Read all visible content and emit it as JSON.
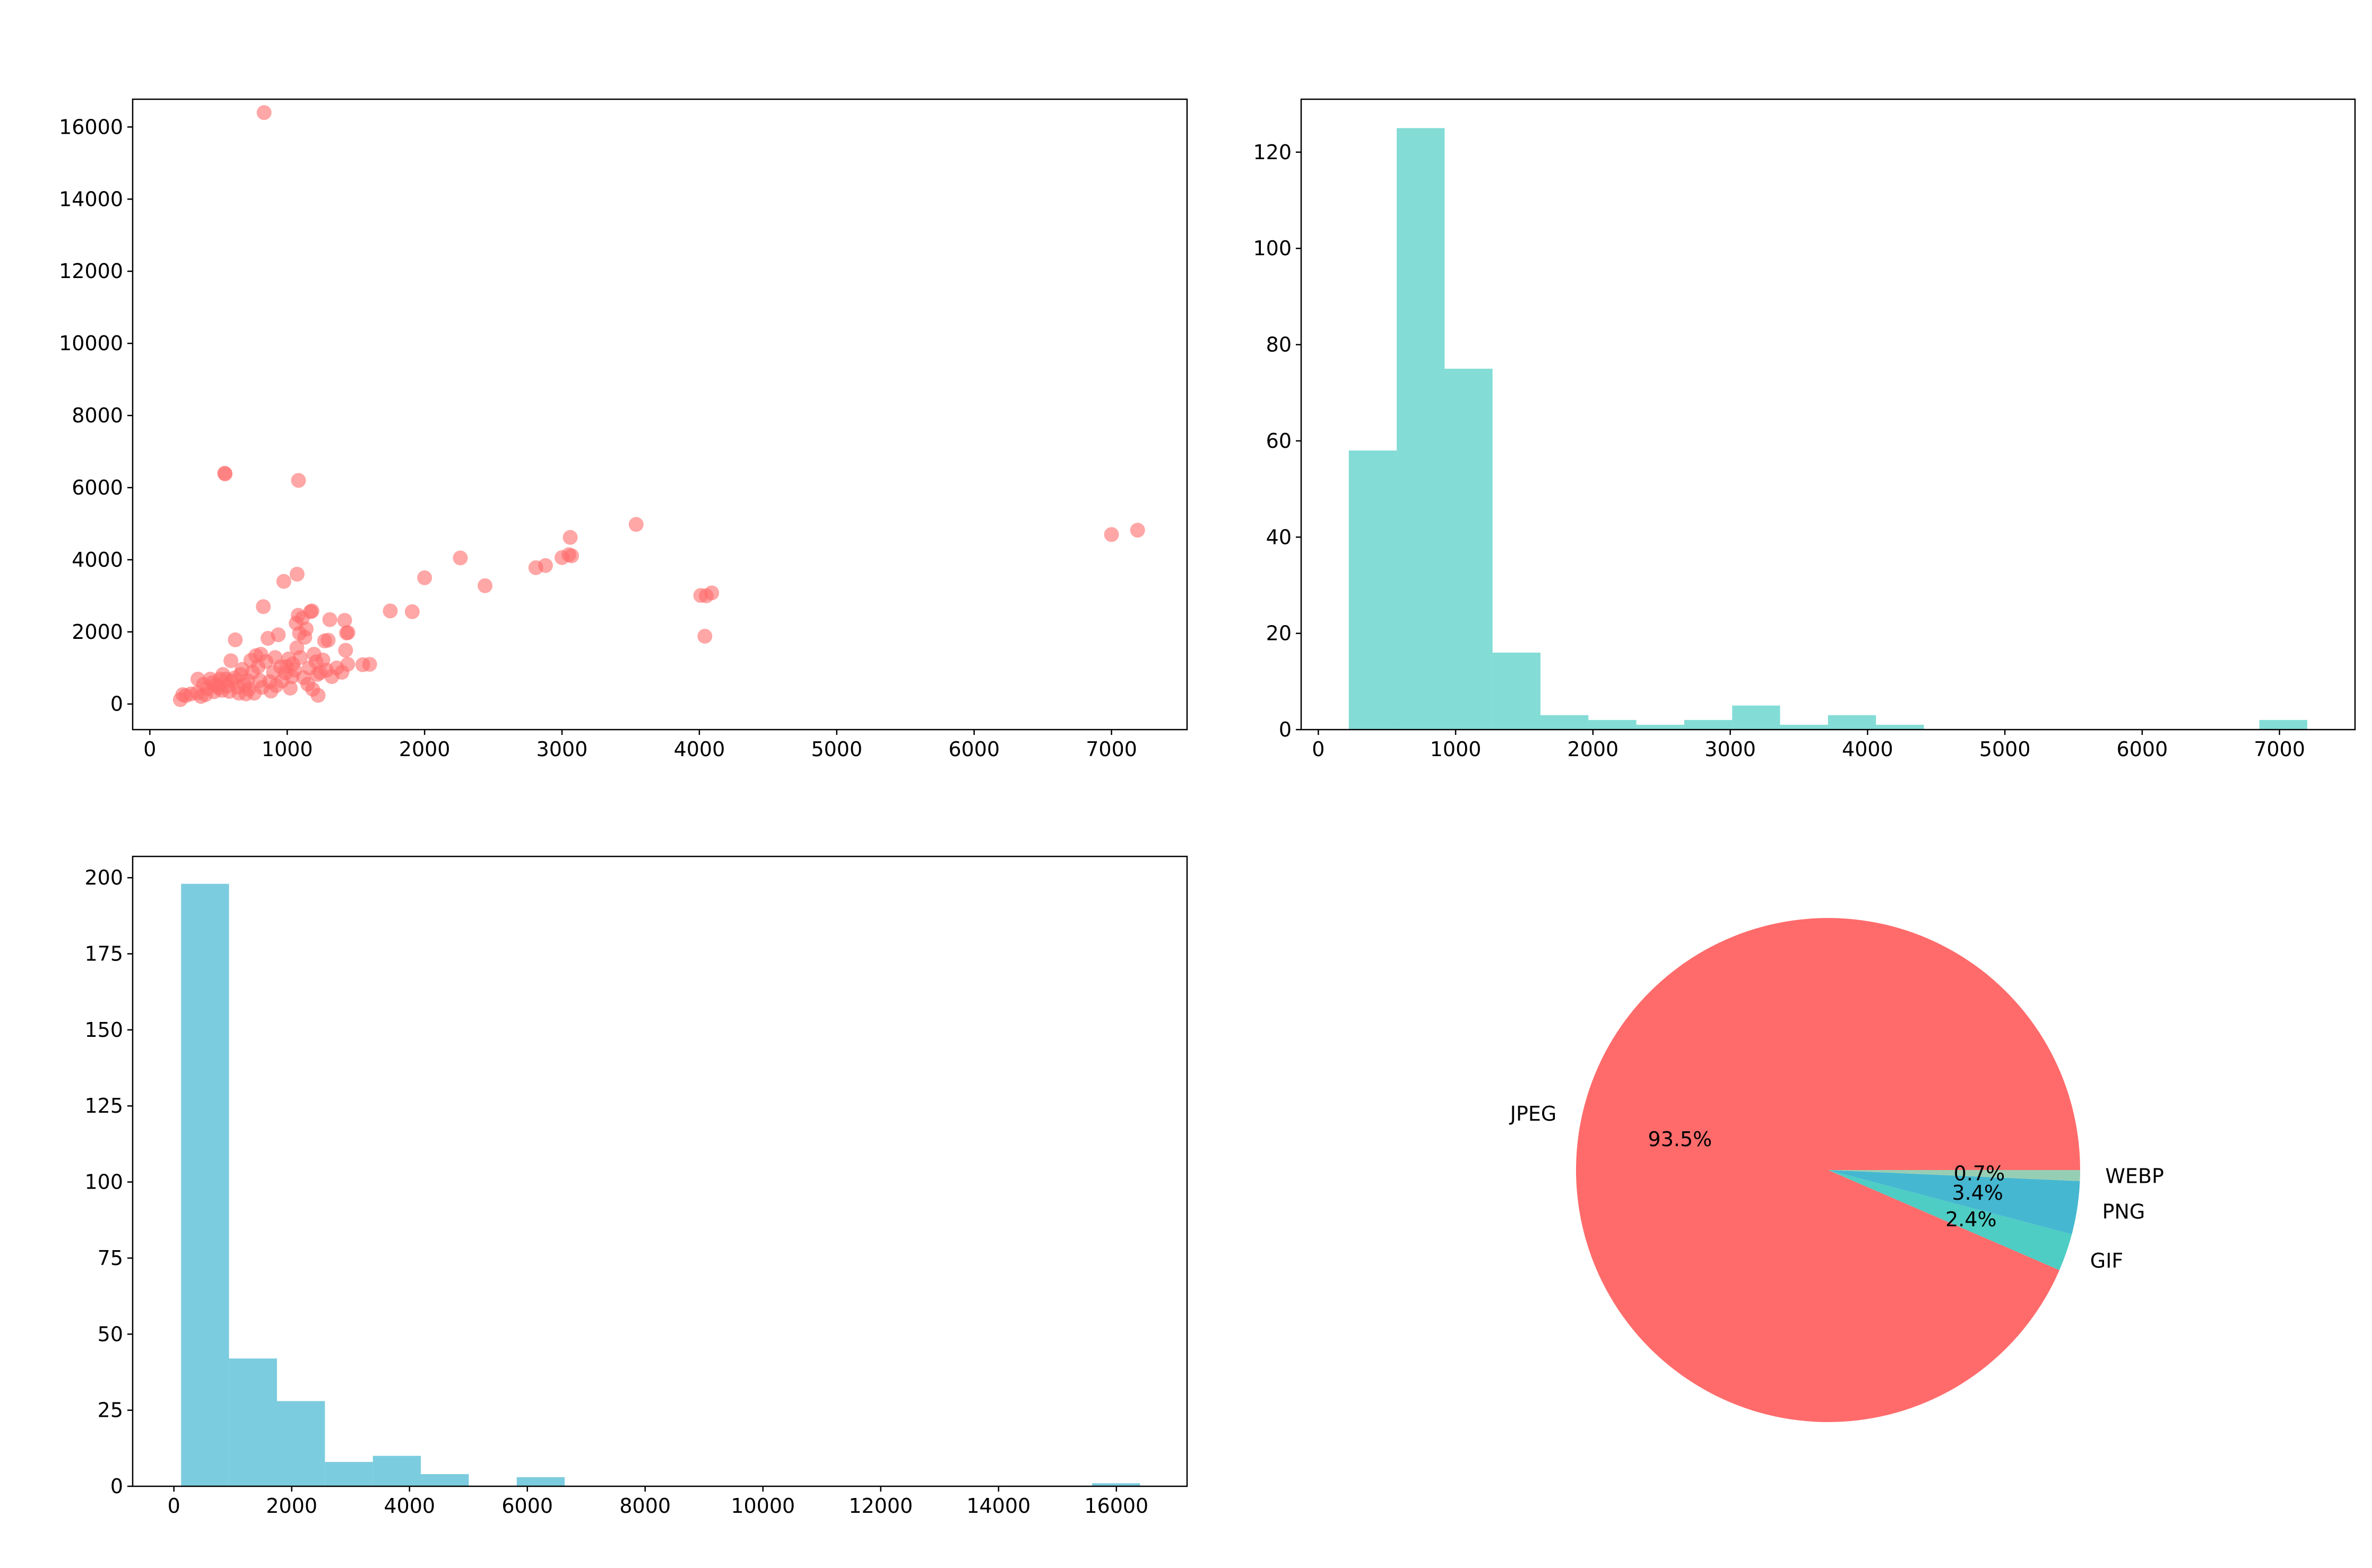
{
  "figure": {
    "title": ""
  },
  "colors": {
    "scatter": "#ff6b6b",
    "width_hist": "#4ecdc4",
    "height_hist": "#45b7d1",
    "pie": [
      "#ff6b6b",
      "#4ecdc4",
      "#45b7d1",
      "#96ceb4"
    ]
  },
  "chart_data": [
    {
      "type": "scatter",
      "title": "",
      "xlabel": "",
      "ylabel": "",
      "xlim": [
        -125,
        7550
      ],
      "ylim": [
        -710,
        16770
      ],
      "xticks": [
        0,
        1000,
        2000,
        3000,
        4000,
        5000,
        6000,
        7000
      ],
      "yticks": [
        0,
        2000,
        4000,
        6000,
        8000,
        10000,
        12000,
        14000,
        16000
      ],
      "alpha": 0.6,
      "points": [
        [
          222,
          122
        ],
        [
          240,
          260
        ],
        [
          262,
          232
        ],
        [
          300,
          280
        ],
        [
          345,
          310
        ],
        [
          350,
          690
        ],
        [
          372,
          210
        ],
        [
          390,
          540
        ],
        [
          405,
          260
        ],
        [
          420,
          430
        ],
        [
          440,
          690
        ],
        [
          455,
          590
        ],
        [
          468,
          340
        ],
        [
          482,
          520
        ],
        [
          500,
          450
        ],
        [
          510,
          690
        ],
        [
          525,
          380
        ],
        [
          532,
          820
        ],
        [
          545,
          6400
        ],
        [
          548,
          6380
        ],
        [
          555,
          690
        ],
        [
          562,
          500
        ],
        [
          578,
          350
        ],
        [
          590,
          1200
        ],
        [
          600,
          640
        ],
        [
          615,
          720
        ],
        [
          622,
          1780
        ],
        [
          640,
          470
        ],
        [
          648,
          300
        ],
        [
          660,
          820
        ],
        [
          672,
          960
        ],
        [
          690,
          540
        ],
        [
          700,
          280
        ],
        [
          712,
          650
        ],
        [
          720,
          410
        ],
        [
          735,
          1210
        ],
        [
          748,
          880
        ],
        [
          760,
          300
        ],
        [
          772,
          1340
        ],
        [
          788,
          1030
        ],
        [
          800,
          650
        ],
        [
          808,
          1380
        ],
        [
          818,
          460
        ],
        [
          826,
          2700
        ],
        [
          832,
          16400
        ],
        [
          845,
          1180
        ],
        [
          860,
          1820
        ],
        [
          872,
          620
        ],
        [
          882,
          360
        ],
        [
          900,
          880
        ],
        [
          912,
          1290
        ],
        [
          920,
          510
        ],
        [
          935,
          1920
        ],
        [
          952,
          1030
        ],
        [
          962,
          640
        ],
        [
          975,
          3400
        ],
        [
          988,
          860
        ],
        [
          995,
          1040
        ],
        [
          1010,
          1250
        ],
        [
          1022,
          440
        ],
        [
          1035,
          760
        ],
        [
          1040,
          1110
        ],
        [
          1055,
          940
        ],
        [
          1065,
          2240
        ],
        [
          1070,
          1560
        ],
        [
          1072,
          3600
        ],
        [
          1080,
          2460
        ],
        [
          1082,
          6200
        ],
        [
          1090,
          1960
        ],
        [
          1095,
          1290
        ],
        [
          1110,
          2380
        ],
        [
          1120,
          730
        ],
        [
          1128,
          1850
        ],
        [
          1138,
          2080
        ],
        [
          1150,
          550
        ],
        [
          1160,
          1000
        ],
        [
          1170,
          2560
        ],
        [
          1180,
          2580
        ],
        [
          1185,
          410
        ],
        [
          1195,
          1380
        ],
        [
          1210,
          1170
        ],
        [
          1220,
          820
        ],
        [
          1225,
          240
        ],
        [
          1240,
          870
        ],
        [
          1260,
          1220
        ],
        [
          1272,
          1750
        ],
        [
          1285,
          940
        ],
        [
          1298,
          1770
        ],
        [
          1310,
          2340
        ],
        [
          1325,
          760
        ],
        [
          1360,
          1000
        ],
        [
          1398,
          880
        ],
        [
          1418,
          2320
        ],
        [
          1425,
          1490
        ],
        [
          1432,
          1970
        ],
        [
          1440,
          1100
        ],
        [
          1442,
          1980
        ],
        [
          1550,
          1090
        ],
        [
          1600,
          1100
        ],
        [
          1750,
          2580
        ],
        [
          1910,
          2560
        ],
        [
          2000,
          3500
        ],
        [
          2260,
          4050
        ],
        [
          2440,
          3280
        ],
        [
          2810,
          3780
        ],
        [
          2880,
          3840
        ],
        [
          3000,
          4060
        ],
        [
          3050,
          4140
        ],
        [
          3070,
          4110
        ],
        [
          3060,
          4620
        ],
        [
          3540,
          4980
        ],
        [
          4010,
          3010
        ],
        [
          4040,
          1880
        ],
        [
          4050,
          3000
        ],
        [
          4090,
          3080
        ],
        [
          7000,
          4700
        ],
        [
          7190,
          4820
        ]
      ]
    },
    {
      "type": "bar",
      "title": "",
      "xlabel": "",
      "ylabel": "",
      "xlim": [
        -125,
        7550
      ],
      "ylim": [
        0,
        131
      ],
      "xticks": [
        0,
        1000,
        2000,
        3000,
        4000,
        5000,
        6000,
        7000
      ],
      "yticks": [
        0,
        20,
        40,
        60,
        80,
        100,
        120
      ],
      "bin_start": 222,
      "bin_width": 349,
      "counts": [
        58,
        125,
        75,
        16,
        3,
        2,
        1,
        2,
        5,
        1,
        3,
        1,
        0,
        0,
        0,
        0,
        0,
        0,
        0,
        2
      ]
    },
    {
      "type": "bar",
      "title": "",
      "xlabel": "",
      "ylabel": "",
      "xlim": [
        -700,
        17200
      ],
      "ylim": [
        0,
        207
      ],
      "xticks": [
        0,
        2000,
        4000,
        6000,
        8000,
        10000,
        12000,
        14000,
        16000
      ],
      "yticks": [
        0,
        25,
        50,
        75,
        100,
        125,
        150,
        175,
        200
      ],
      "bin_start": 122,
      "bin_width": 814,
      "counts": [
        198,
        42,
        28,
        8,
        10,
        4,
        0,
        3,
        0,
        0,
        0,
        0,
        0,
        0,
        0,
        0,
        0,
        0,
        0,
        1
      ]
    },
    {
      "type": "pie",
      "title": "",
      "labels": [
        "JPEG",
        "GIF",
        "PNG",
        "WEBP"
      ],
      "values": [
        93.5,
        2.4,
        3.4,
        0.7
      ],
      "pct_labels": [
        "93.5%",
        "2.4%",
        "3.4%",
        "0.7%"
      ]
    }
  ]
}
